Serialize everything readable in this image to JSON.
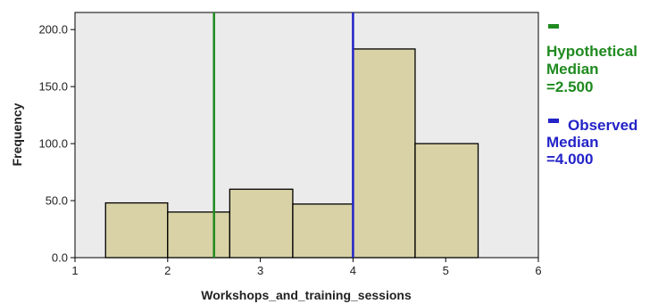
{
  "chart_data": {
    "type": "bar",
    "xlabel": "Workshops_and_training_sessions",
    "ylabel": "Frequency",
    "xlim": [
      1,
      6
    ],
    "ylim": [
      0,
      215
    ],
    "x_ticks": [
      1,
      2,
      3,
      4,
      5,
      6
    ],
    "y_ticks": [
      "0.0",
      "50.0",
      "100.0",
      "150.0",
      "200.0"
    ],
    "bins": [
      {
        "x0": 1.33,
        "x1": 2.0,
        "value": 48
      },
      {
        "x0": 2.0,
        "x1": 2.67,
        "value": 40
      },
      {
        "x0": 2.67,
        "x1": 3.35,
        "value": 60
      },
      {
        "x0": 3.35,
        "x1": 4.0,
        "value": 47
      },
      {
        "x0": 4.0,
        "x1": 4.67,
        "value": 183
      },
      {
        "x0": 4.67,
        "x1": 5.35,
        "value": 100
      }
    ],
    "reference_lines": [
      {
        "value": 2.5,
        "color": "#1f8a1f",
        "label_lines": [
          "Hypothetical",
          "Median",
          "=2.500"
        ]
      },
      {
        "value": 4.0,
        "color": "#2323c8",
        "label_lines": [
          "Observed",
          "Median",
          "=4.000"
        ]
      }
    ],
    "bar_color": "#d8d2a6",
    "plot_background": "#ebebeb",
    "grid": false,
    "legend_position": "right"
  }
}
